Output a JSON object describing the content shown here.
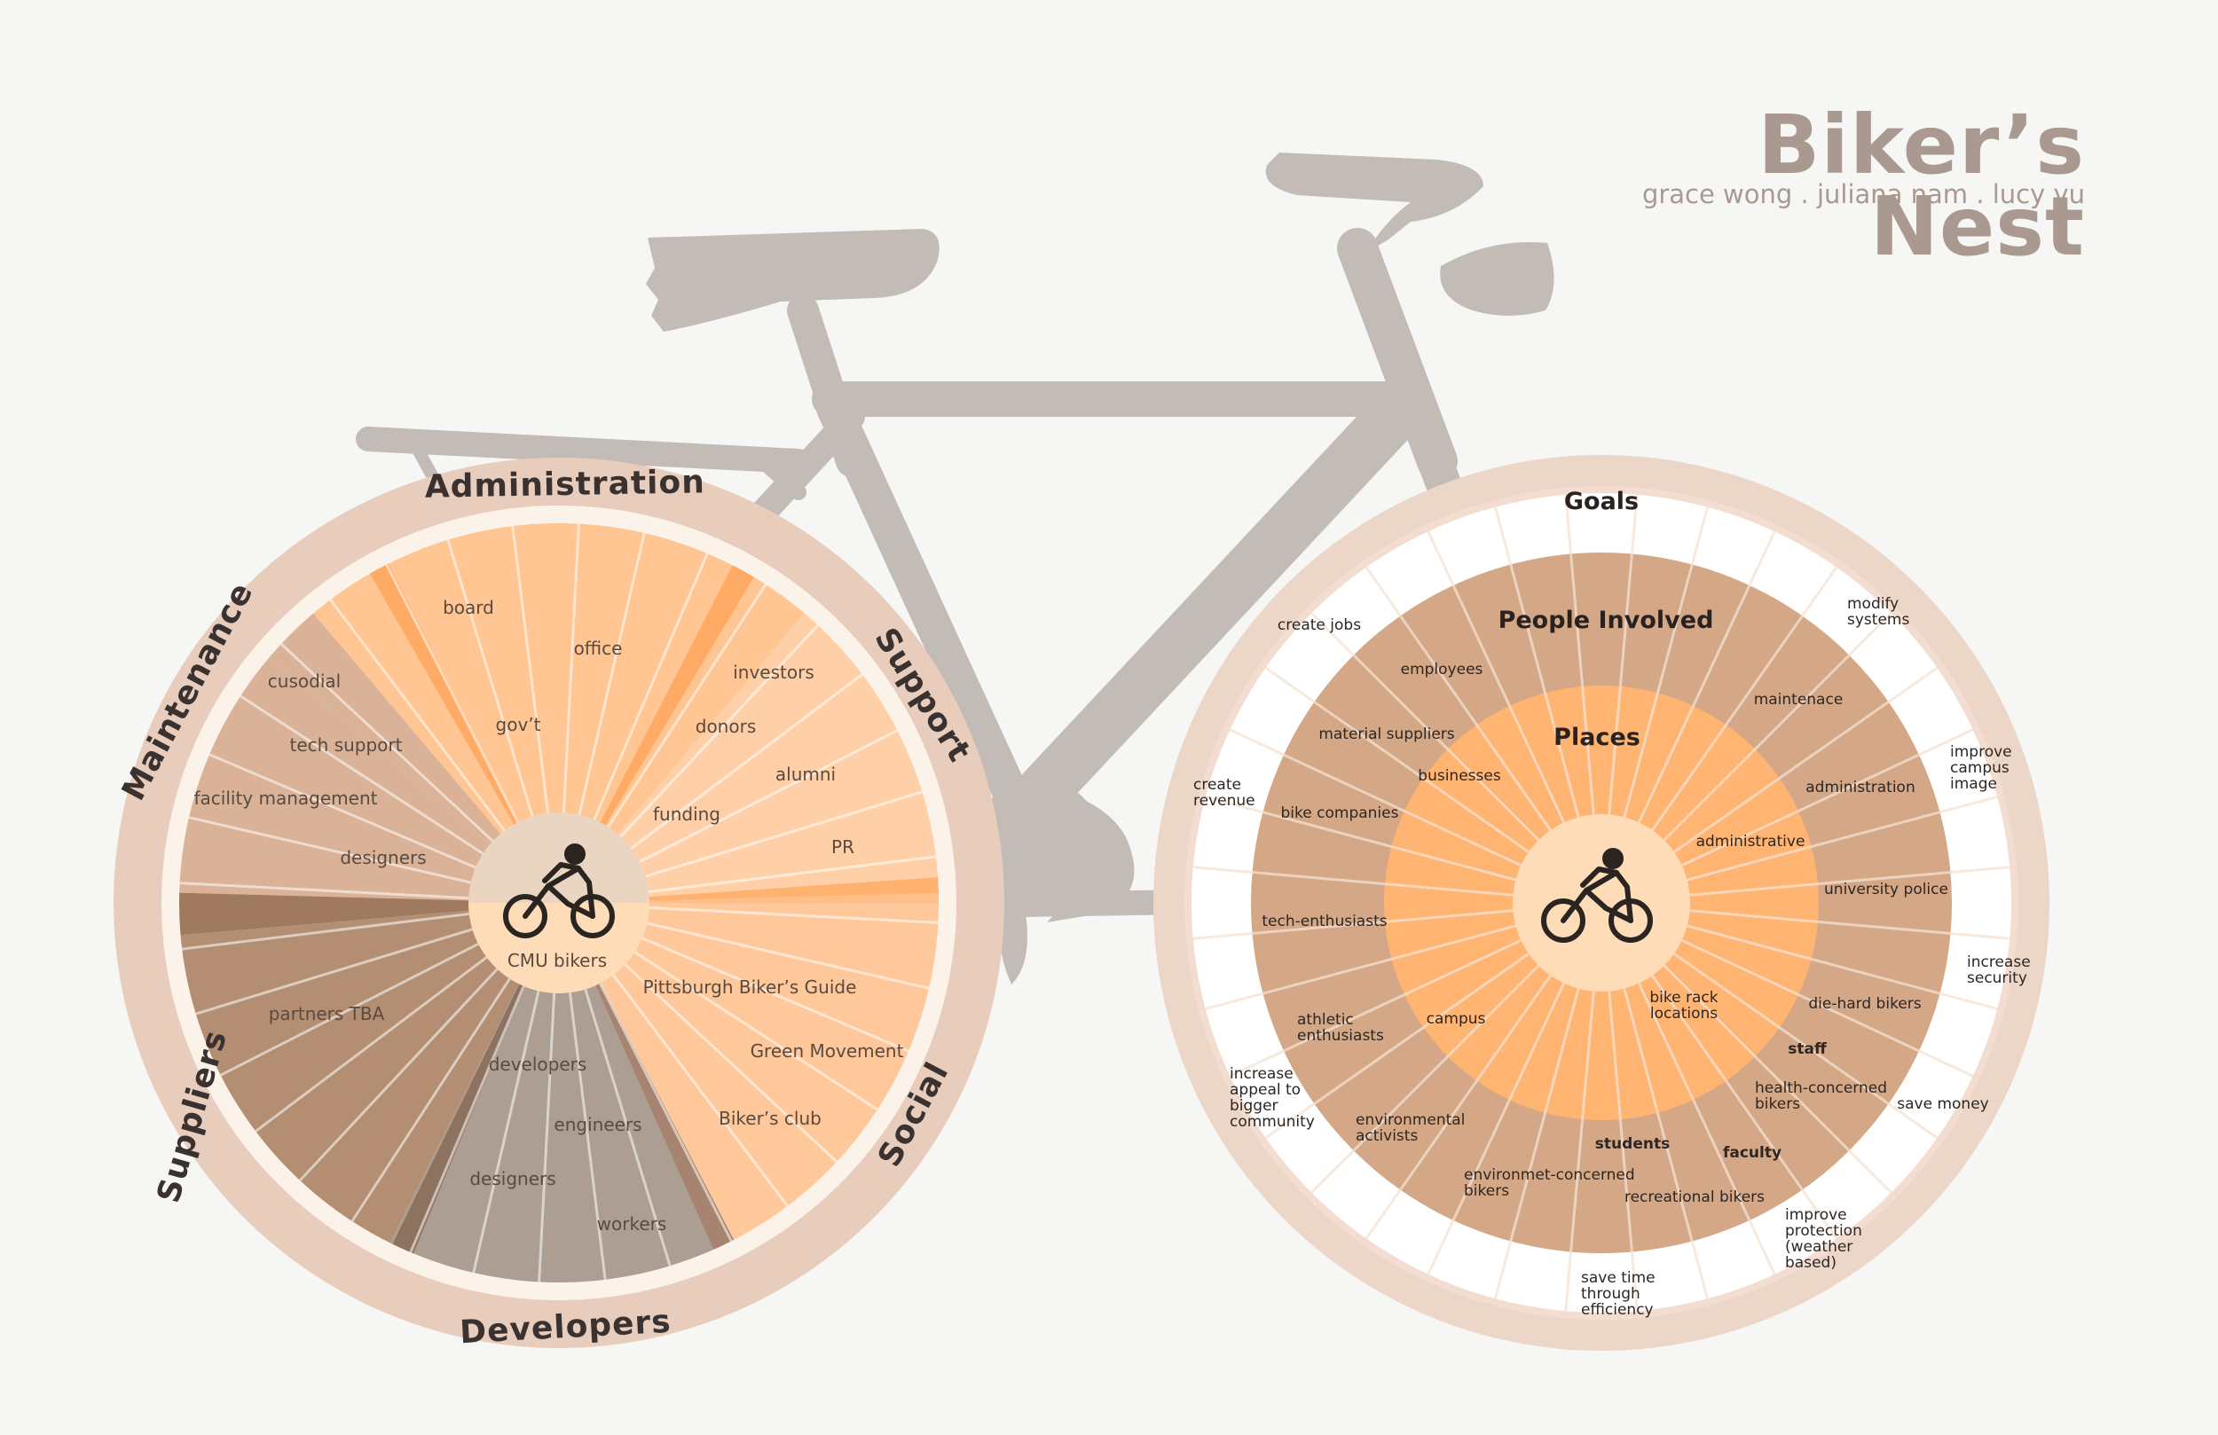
{
  "header": {
    "title": "Biker’s Nest",
    "subtitle": "grace wong . juliana nam . lucy yu"
  },
  "colors": {
    "frame": "#c2bbb6",
    "tire": "#e8cdbd",
    "orange": "#ffbf8a",
    "orange_light": "#ffd0a8",
    "tan": "#d9b297",
    "brown": "#b48e73",
    "gray_brown": "#ac9e92",
    "right_mid": "#d4a886",
    "right_inner": "#ffb472",
    "hub": "#ffdcb8"
  },
  "left_wheel": {
    "rim_labels": {
      "administration": "Administration",
      "support": "Support",
      "social": "Social",
      "developers": "Developers",
      "suppliers": "Suppliers",
      "maintenance": "Maintenance"
    },
    "hub_label": "CMU bikers",
    "items": {
      "board": "board",
      "office": "office",
      "govt": "gov’t",
      "investors": "investors",
      "donors": "donors",
      "alumni": "alumni",
      "funding": "funding",
      "pr": "PR",
      "cusodial": "cusodial",
      "tech_support": "tech support",
      "facility_management": "facility management",
      "designers_maint": "designers",
      "partners_tba": "partners TBA",
      "pittsburgh_guide": "Pittsburgh Biker’s Guide",
      "green_movement": "Green Movement",
      "bikers_club": "Biker’s club",
      "developers": "developers",
      "engineers": "engineers",
      "designers_dev": "designers",
      "workers": "workers"
    }
  },
  "right_wheel": {
    "ring_titles": {
      "goals": "Goals",
      "people": "People Involved",
      "places": "Places"
    },
    "goals": {
      "create_jobs": "create jobs",
      "modify_systems": [
        "modify",
        "systems"
      ],
      "improve_campus_image": [
        "improve",
        "campus",
        "image"
      ],
      "create_revenue": [
        "create",
        "revenue"
      ],
      "increase_security": [
        "increase",
        "security"
      ],
      "increase_appeal": [
        "increase",
        "appeal to",
        "bigger",
        "community"
      ],
      "save_money": "save money",
      "improve_protection": [
        "improve",
        "protection",
        "(weather",
        "based)"
      ],
      "save_time": [
        "save time",
        "through",
        "efficiency"
      ]
    },
    "people": {
      "employees": "employees",
      "material_suppliers": "material suppliers",
      "bike_companies": "bike companies",
      "tech_enthusiasts": "tech-enthusiasts",
      "athletic_enthusiasts": [
        "athletic",
        "enthusiasts"
      ],
      "environmental_activists": [
        "environmental",
        "activists"
      ],
      "environment_concerned": [
        "environmet-concerned",
        "bikers"
      ],
      "students": "students",
      "recreational_bikers": "recreational bikers",
      "faculty": "faculty",
      "health_concerned": [
        "health-concerned",
        "bikers"
      ],
      "staff": "staff",
      "die_hard_bikers": "die-hard bikers",
      "university_police": "university police",
      "administration": "administration",
      "maintenance": "maintenace"
    },
    "places": {
      "businesses": "businesses",
      "administrative": "administrative",
      "campus": "campus",
      "bike_rack_locations": [
        "bike rack",
        "locations"
      ]
    }
  }
}
